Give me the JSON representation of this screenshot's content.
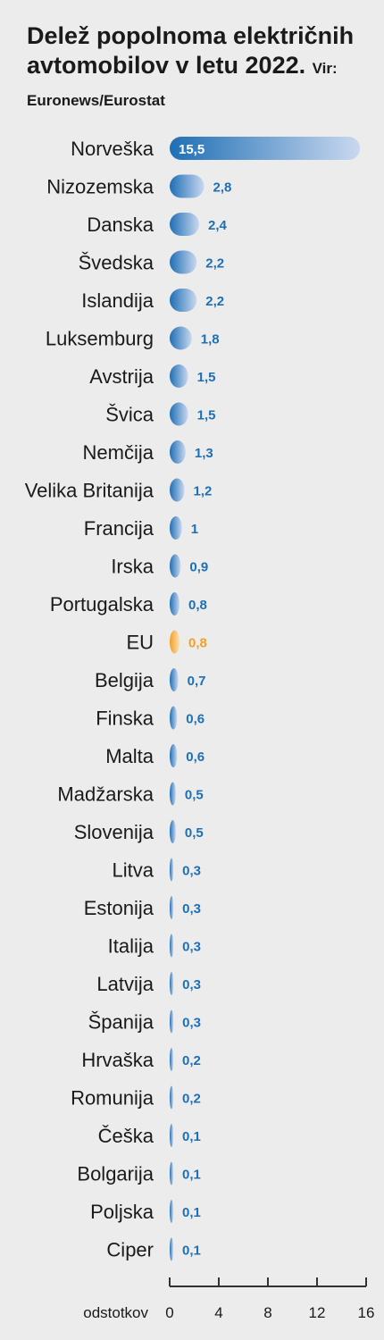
{
  "title_main": "Delež popolnoma električnih avtomobilov v letu 2022.",
  "title_source": "Vir: Euronews/Eurostat",
  "colors": {
    "bar": "#1f6fb5",
    "bar_light": "#c9d8ef",
    "highlight": "#f0a028",
    "highlight_light": "#fbe0b0",
    "axis": "#333333"
  },
  "chart_data": {
    "type": "bar",
    "orientation": "horizontal",
    "title": "Delež popolnoma električnih avtomobilov v letu 2022.",
    "subtitle": "Vir: Euronews/Eurostat",
    "xlabel": "odstotkov",
    "ylabel": "",
    "xlim": [
      0,
      16
    ],
    "xticks": [
      0,
      4,
      8,
      12,
      16
    ],
    "grid": false,
    "highlight_category": "EU",
    "categories": [
      "Norveška",
      "Nizozemska",
      "Danska",
      "Švedska",
      "Islandija",
      "Luksemburg",
      "Avstrija",
      "Švica",
      "Nemčija",
      "Velika Britanija",
      "Francija",
      "Irska",
      "Portugalska",
      "EU",
      "Belgija",
      "Finska",
      "Malta",
      "Madžarska",
      "Slovenija",
      "Litva",
      "Estonija",
      "Italija",
      "Latvija",
      "Španija",
      "Hrvaška",
      "Romunija",
      "Češka",
      "Bolgarija",
      "Poljska",
      "Ciper"
    ],
    "values": [
      15.5,
      2.8,
      2.4,
      2.2,
      2.2,
      1.8,
      1.5,
      1.5,
      1.3,
      1.2,
      1,
      0.9,
      0.8,
      0.8,
      0.7,
      0.6,
      0.6,
      0.5,
      0.5,
      0.3,
      0.3,
      0.3,
      0.3,
      0.3,
      0.2,
      0.2,
      0.1,
      0.1,
      0.1,
      0.1
    ],
    "labels": [
      "15,5",
      "2,8",
      "2,4",
      "2,2",
      "2,2",
      "1,8",
      "1,5",
      "1,5",
      "1,3",
      "1,2",
      "1",
      "0,9",
      "0,8",
      "0,8",
      "0,7",
      "0,6",
      "0,6",
      "0,5",
      "0,5",
      "0,3",
      "0,3",
      "0,3",
      "0,3",
      "0,3",
      "0,2",
      "0,2",
      "0,1",
      "0,1",
      "0,1",
      "0,1"
    ]
  }
}
